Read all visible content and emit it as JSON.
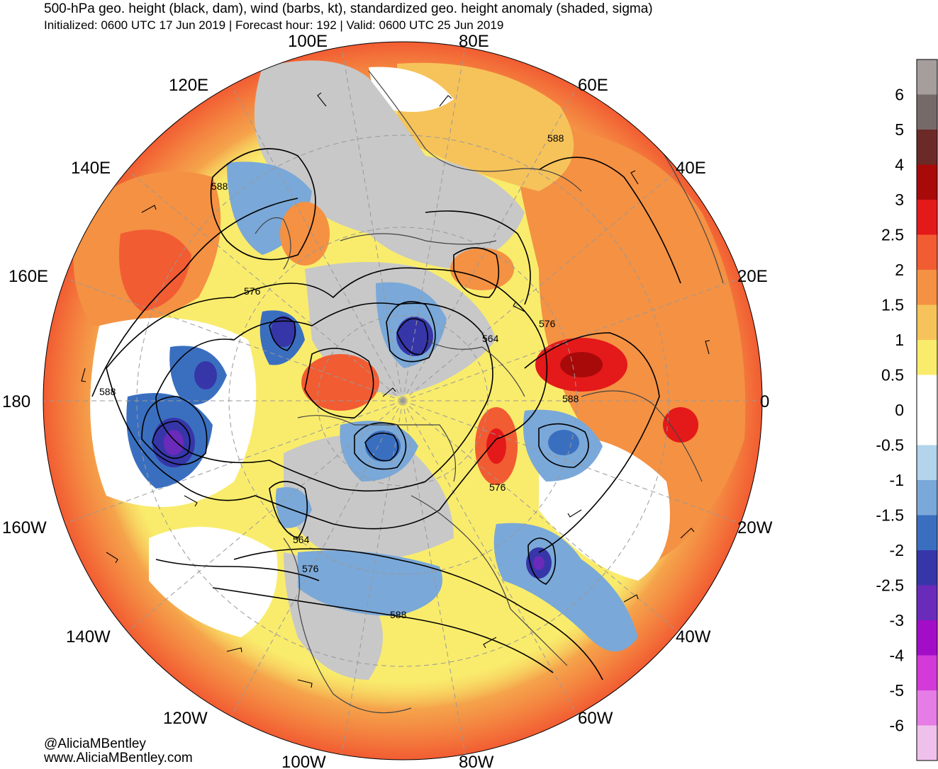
{
  "header": {
    "title": "500-hPa geo. height (black, dam), wind (barbs, kt), standardized geo. height anomaly (shaded, sigma)",
    "subtitle": "Initialized: 0600 UTC 17 Jun 2019 | Forecast hour: 192 | Valid: 0600 UTC 25 Jun 2019"
  },
  "credits": {
    "handle": "@AliciaMBentley",
    "site": "www.AliciaMBentley.com"
  },
  "longitude_labels": [
    {
      "text": "100E"
    },
    {
      "text": "80E"
    },
    {
      "text": "120E"
    },
    {
      "text": "60E"
    },
    {
      "text": "140E"
    },
    {
      "text": "40E"
    },
    {
      "text": "160E"
    },
    {
      "text": "20E"
    },
    {
      "text": "180"
    },
    {
      "text": "0"
    },
    {
      "text": "160W"
    },
    {
      "text": "20W"
    },
    {
      "text": "140W"
    },
    {
      "text": "40W"
    },
    {
      "text": "120W"
    },
    {
      "text": "60W"
    },
    {
      "text": "100W"
    },
    {
      "text": "80W"
    }
  ],
  "contour_labels": [
    {
      "text": "588"
    },
    {
      "text": "588"
    },
    {
      "text": "576"
    },
    {
      "text": "564"
    },
    {
      "text": "576"
    },
    {
      "text": "588"
    },
    {
      "text": "588"
    },
    {
      "text": "576"
    },
    {
      "text": "564"
    },
    {
      "text": "576"
    },
    {
      "text": "588"
    }
  ],
  "colorbar": {
    "units": "sigma",
    "bins": [
      {
        "color": "#a59e9c"
      },
      {
        "color": "#766a69"
      },
      {
        "color": "#6b2a27"
      },
      {
        "color": "#a80a0a"
      },
      {
        "color": "#e4191a"
      },
      {
        "color": "#f25c32"
      },
      {
        "color": "#f49143"
      },
      {
        "color": "#f6c35a"
      },
      {
        "color": "#f9ec6c"
      },
      {
        "color": "#ffffff"
      },
      {
        "color": "#ffffff"
      },
      {
        "color": "#b3d4ea"
      },
      {
        "color": "#7aa8d8"
      },
      {
        "color": "#3a6fc0"
      },
      {
        "color": "#3636a8"
      },
      {
        "color": "#6a2aba"
      },
      {
        "color": "#a30dc8"
      },
      {
        "color": "#d33ad8"
      },
      {
        "color": "#e67ce6"
      },
      {
        "color": "#f0c0ec"
      }
    ],
    "tick_labels": [
      "6",
      "5",
      "4",
      "3",
      "2.5",
      "2",
      "1.5",
      "1",
      "0.5",
      "0",
      "-0.5",
      "-1",
      "-1.5",
      "-2",
      "-2.5",
      "-3",
      "-4",
      "-5",
      "-6"
    ]
  }
}
